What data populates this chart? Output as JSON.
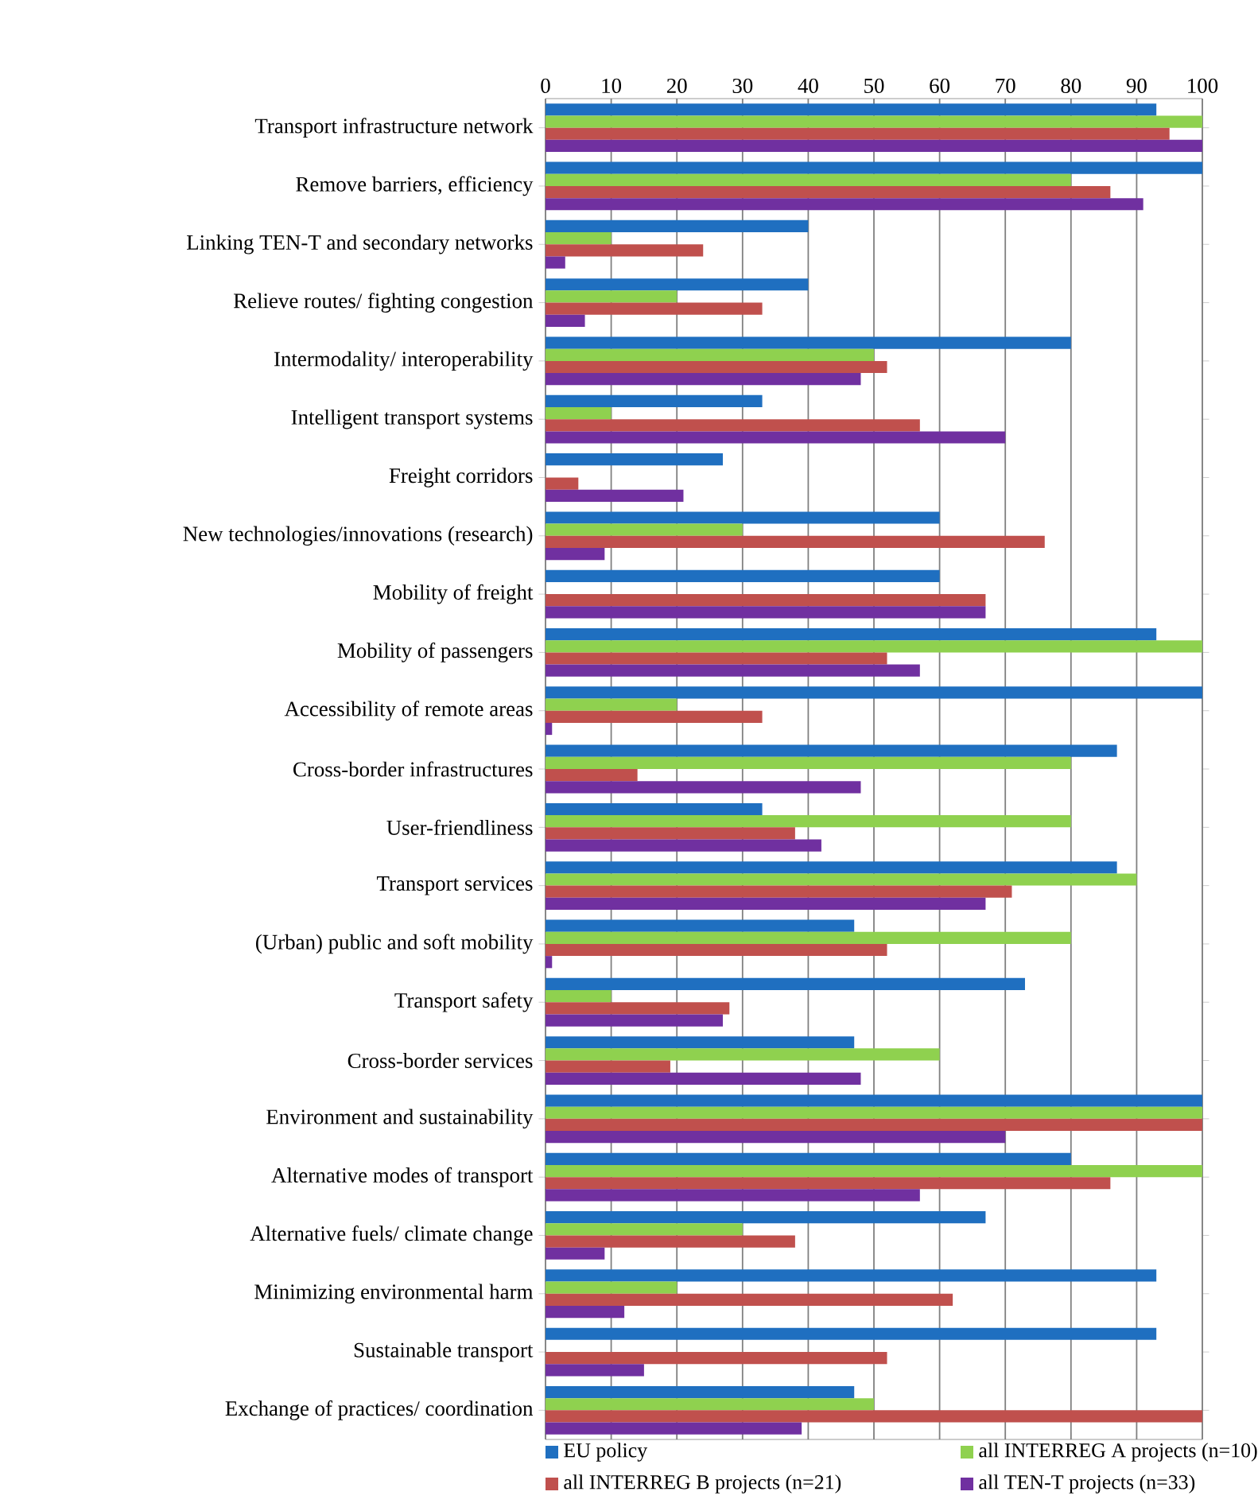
{
  "chart_data": {
    "type": "bar",
    "orientation": "horizontal",
    "categories": [
      "Transport infrastructure network",
      "Remove barriers, efficiency",
      "Linking TEN-T and secondary  networks",
      "Relieve routes/ fighting congestion",
      "Intermodality/ interoperability",
      "Intelligent transport systems",
      "Freight corridors",
      "New technologies/innovations (research)",
      "Mobility of freight",
      "Mobility of passengers",
      "Accessibility of remote areas",
      "Cross-border infrastructures",
      "User-friendliness",
      "Transport services",
      "(Urban) public and soft mobility",
      "Transport safety",
      "Cross-border services",
      "Environment and sustainability",
      "Alternative modes of transport",
      "Alternative fuels/ climate change",
      "Minimizing environmental harm",
      "Sustainable transport",
      "Exchange of practices/ coordination"
    ],
    "series": [
      {
        "name": "EU policy",
        "color": "#1f6fc0",
        "values": [
          93,
          100,
          40,
          40,
          80,
          33,
          27,
          60,
          60,
          93,
          100,
          87,
          33,
          87,
          47,
          73,
          47,
          100,
          80,
          67,
          93,
          93,
          47
        ]
      },
      {
        "name": "all INTERREG A projects (n=10)",
        "color": "#8fd14f",
        "values": [
          100,
          80,
          10,
          20,
          50,
          10,
          0,
          30,
          0,
          100,
          20,
          80,
          80,
          90,
          80,
          10,
          60,
          100,
          100,
          30,
          20,
          0,
          50
        ]
      },
      {
        "name": "all INTERREG B projects (n=21)",
        "color": "#c0504d",
        "values": [
          95,
          86,
          24,
          33,
          52,
          57,
          5,
          76,
          67,
          52,
          33,
          14,
          38,
          71,
          52,
          28,
          19,
          100,
          86,
          38,
          62,
          52,
          100
        ]
      },
      {
        "name": "all TEN-T projects (n=33)",
        "color": "#7030a0",
        "values": [
          100,
          91,
          3,
          6,
          48,
          70,
          21,
          9,
          67,
          57,
          1,
          48,
          42,
          67,
          1,
          27,
          48,
          70,
          57,
          9,
          12,
          15,
          39
        ]
      }
    ],
    "xlim": [
      0,
      100
    ],
    "xticks": [
      0,
      10,
      20,
      30,
      40,
      50,
      60,
      70,
      80,
      90,
      100
    ],
    "grid": "x",
    "legend": "bottom"
  }
}
